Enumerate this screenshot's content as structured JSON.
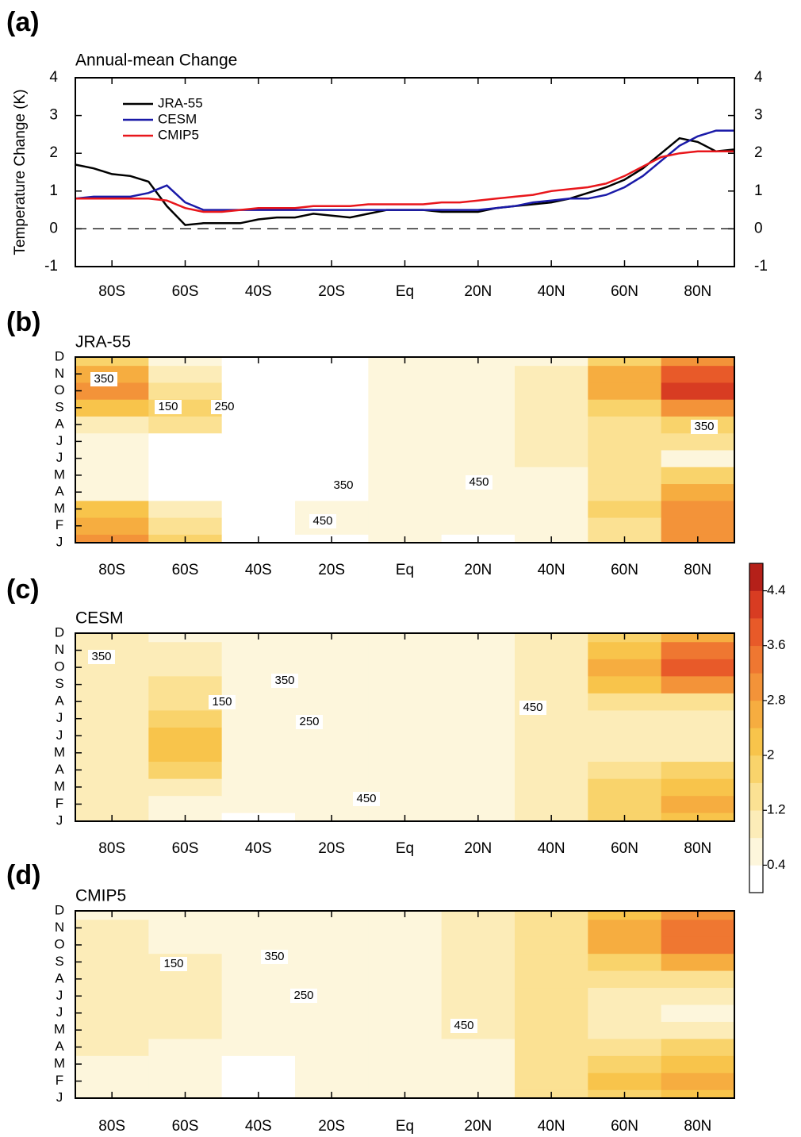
{
  "chart_data": [
    {
      "type": "line",
      "panel_label": "(a)",
      "title": "Annual-mean Change",
      "ylabel": "Temperature Change (K)",
      "x": [
        -90,
        -85,
        -80,
        -75,
        -70,
        -65,
        -60,
        -55,
        -50,
        -45,
        -40,
        -35,
        -30,
        -25,
        -20,
        -15,
        -10,
        -5,
        0,
        5,
        10,
        15,
        20,
        25,
        30,
        35,
        40,
        45,
        50,
        55,
        60,
        65,
        70,
        75,
        80,
        85,
        90
      ],
      "series": [
        {
          "name": "JRA-55",
          "color": "#000000",
          "values": [
            1.7,
            1.6,
            1.45,
            1.4,
            1.25,
            0.6,
            0.1,
            0.15,
            0.15,
            0.15,
            0.25,
            0.3,
            0.3,
            0.4,
            0.35,
            0.3,
            0.4,
            0.5,
            0.5,
            0.5,
            0.45,
            0.45,
            0.45,
            0.55,
            0.6,
            0.65,
            0.7,
            0.8,
            0.95,
            1.1,
            1.3,
            1.6,
            2.0,
            2.4,
            2.3,
            2.05,
            2.1
          ]
        },
        {
          "name": "CESM",
          "color": "#1a1aa8",
          "values": [
            0.8,
            0.85,
            0.85,
            0.85,
            0.95,
            1.15,
            0.7,
            0.5,
            0.5,
            0.5,
            0.5,
            0.5,
            0.5,
            0.5,
            0.5,
            0.5,
            0.5,
            0.5,
            0.5,
            0.5,
            0.5,
            0.5,
            0.5,
            0.55,
            0.6,
            0.7,
            0.75,
            0.8,
            0.8,
            0.9,
            1.1,
            1.4,
            1.8,
            2.2,
            2.45,
            2.6,
            2.6
          ]
        },
        {
          "name": "CMIP5",
          "color": "#e8161b",
          "values": [
            0.8,
            0.8,
            0.8,
            0.8,
            0.8,
            0.75,
            0.55,
            0.45,
            0.45,
            0.5,
            0.55,
            0.55,
            0.55,
            0.6,
            0.6,
            0.6,
            0.65,
            0.65,
            0.65,
            0.65,
            0.7,
            0.7,
            0.75,
            0.8,
            0.85,
            0.9,
            1.0,
            1.05,
            1.1,
            1.2,
            1.4,
            1.65,
            1.9,
            2.0,
            2.05,
            2.05,
            2.05
          ]
        }
      ],
      "xlim": [
        -90,
        90
      ],
      "xticks": [
        {
          "value": -80,
          "label": "80S"
        },
        {
          "value": -60,
          "label": "60S"
        },
        {
          "value": -40,
          "label": "40S"
        },
        {
          "value": -20,
          "label": "20S"
        },
        {
          "value": 0,
          "label": "Eq"
        },
        {
          "value": 20,
          "label": "20N"
        },
        {
          "value": 40,
          "label": "40N"
        },
        {
          "value": 60,
          "label": "60N"
        },
        {
          "value": 80,
          "label": "80N"
        }
      ],
      "ylim": [
        -1,
        4
      ],
      "yticks": [
        -1,
        0,
        1,
        2,
        3,
        4
      ],
      "y2lim": [
        -1,
        4
      ],
      "y2ticks": [
        -1,
        0,
        1,
        2,
        3,
        4
      ],
      "legend": "upper left"
    },
    {
      "type": "heatmap",
      "panel_label": "(b)",
      "title": "JRA-55",
      "x": [
        -80,
        -60,
        -40,
        -20,
        0,
        20,
        40,
        60,
        80
      ],
      "xlim": [
        -90,
        90
      ],
      "xticks": [
        {
          "value": -80,
          "label": "80S"
        },
        {
          "value": -60,
          "label": "60S"
        },
        {
          "value": -40,
          "label": "40S"
        },
        {
          "value": -20,
          "label": "20S"
        },
        {
          "value": 0,
          "label": "Eq"
        },
        {
          "value": 20,
          "label": "20N"
        },
        {
          "value": 40,
          "label": "40N"
        },
        {
          "value": 60,
          "label": "60N"
        },
        {
          "value": 80,
          "label": "80N"
        }
      ],
      "categories": [
        "J",
        "F",
        "M",
        "A",
        "M",
        "J",
        "J",
        "A",
        "S",
        "O",
        "N",
        "D"
      ],
      "values": [
        [
          3.0,
          1.8,
          0.3,
          0.2,
          0.6,
          0.3,
          0.6,
          1.5,
          3.0
        ],
        [
          2.6,
          1.5,
          0.3,
          0.5,
          0.6,
          0.5,
          0.6,
          1.5,
          3.0
        ],
        [
          2.0,
          1.0,
          0.2,
          0.5,
          0.6,
          0.5,
          0.6,
          1.6,
          2.8
        ],
        [
          0.7,
          0.3,
          0.2,
          0.3,
          0.5,
          0.6,
          0.7,
          1.4,
          2.4
        ],
        [
          0.7,
          0.3,
          0.2,
          0.3,
          0.5,
          0.6,
          0.7,
          1.2,
          1.6
        ],
        [
          0.5,
          0.2,
          0.1,
          0.3,
          0.5,
          0.6,
          0.8,
          1.2,
          0.5
        ],
        [
          0.6,
          0.3,
          0.1,
          0.3,
          0.6,
          0.6,
          0.8,
          1.3,
          1.2
        ],
        [
          1.0,
          1.3,
          0.1,
          0.2,
          0.6,
          0.7,
          1.0,
          1.4,
          1.6
        ],
        [
          2.2,
          1.6,
          0.1,
          0.2,
          0.6,
          0.6,
          1.0,
          1.8,
          2.8
        ],
        [
          2.8,
          1.3,
          0.1,
          0.2,
          0.7,
          0.6,
          1.0,
          2.6,
          4.2
        ],
        [
          2.4,
          0.9,
          0.1,
          0.2,
          0.7,
          0.6,
          0.8,
          2.4,
          3.8
        ],
        [
          1.8,
          0.6,
          0.1,
          0.3,
          0.7,
          0.5,
          0.7,
          1.8,
          3.0
        ]
      ],
      "contour_labels": [
        350,
        150,
        250,
        350,
        350,
        450,
        450
      ]
    },
    {
      "type": "heatmap",
      "panel_label": "(c)",
      "title": "CESM",
      "x": [
        -80,
        -60,
        -40,
        -20,
        0,
        20,
        40,
        60,
        80
      ],
      "xlim": [
        -90,
        90
      ],
      "xticks": [
        {
          "value": -80,
          "label": "80S"
        },
        {
          "value": -60,
          "label": "60S"
        },
        {
          "value": -40,
          "label": "40S"
        },
        {
          "value": -20,
          "label": "20S"
        },
        {
          "value": 0,
          "label": "Eq"
        },
        {
          "value": 20,
          "label": "20N"
        },
        {
          "value": 40,
          "label": "40N"
        },
        {
          "value": 60,
          "label": "60N"
        },
        {
          "value": 80,
          "label": "80N"
        }
      ],
      "categories": [
        "J",
        "F",
        "M",
        "A",
        "M",
        "J",
        "J",
        "A",
        "S",
        "O",
        "N",
        "D"
      ],
      "values": [
        [
          0.9,
          0.6,
          0.3,
          0.6,
          0.6,
          0.6,
          0.8,
          1.6,
          2.2
        ],
        [
          1.0,
          0.7,
          0.5,
          0.6,
          0.6,
          0.6,
          0.8,
          1.7,
          2.4
        ],
        [
          0.9,
          1.0,
          0.6,
          0.6,
          0.6,
          0.6,
          0.8,
          1.6,
          2.3
        ],
        [
          0.8,
          1.8,
          0.6,
          0.6,
          0.6,
          0.6,
          0.8,
          1.3,
          1.6
        ],
        [
          0.8,
          2.2,
          0.6,
          0.6,
          0.6,
          0.6,
          0.8,
          1.0,
          0.8
        ],
        [
          1.0,
          2.0,
          0.6,
          0.6,
          0.6,
          0.6,
          1.0,
          0.9,
          0.8
        ],
        [
          1.1,
          1.6,
          0.6,
          0.6,
          0.6,
          0.6,
          1.1,
          1.0,
          1.0
        ],
        [
          1.0,
          1.4,
          0.6,
          0.6,
          0.6,
          0.5,
          1.1,
          1.3,
          1.4
        ],
        [
          0.9,
          1.3,
          0.6,
          0.6,
          0.6,
          0.6,
          1.0,
          2.0,
          2.8
        ],
        [
          1.0,
          1.0,
          0.6,
          0.6,
          0.6,
          0.6,
          0.9,
          2.6,
          3.8
        ],
        [
          0.9,
          0.8,
          0.6,
          0.6,
          0.6,
          0.6,
          0.8,
          2.3,
          3.4
        ],
        [
          0.8,
          0.7,
          0.6,
          0.6,
          0.6,
          0.6,
          0.8,
          1.7,
          2.6
        ]
      ],
      "contour_labels": [
        350,
        350,
        150,
        250,
        450,
        450
      ],
      "colorbar": {
        "levels": [
          0.4,
          0.8,
          1.2,
          1.6,
          2,
          2.4,
          2.8,
          3.2,
          3.6,
          4,
          4.4
        ],
        "colors": [
          "#ffffff",
          "#fdf6dc",
          "#fcecb8",
          "#fbe193",
          "#f9d36b",
          "#f8c44b",
          "#f6ad40",
          "#f39339",
          "#ef7731",
          "#e85a29",
          "#d83c22",
          "#b52019"
        ],
        "ticks": [
          0.4,
          1.2,
          2,
          2.8,
          3.6,
          4.4
        ]
      }
    },
    {
      "type": "heatmap",
      "panel_label": "(d)",
      "title": "CMIP5",
      "x": [
        -80,
        -60,
        -40,
        -20,
        0,
        20,
        40,
        60,
        80
      ],
      "xlim": [
        -90,
        90
      ],
      "xticks": [
        {
          "value": -80,
          "label": "80S"
        },
        {
          "value": -60,
          "label": "60S"
        },
        {
          "value": -40,
          "label": "40S"
        },
        {
          "value": -20,
          "label": "20S"
        },
        {
          "value": 0,
          "label": "Eq"
        },
        {
          "value": 20,
          "label": "20N"
        },
        {
          "value": 40,
          "label": "40N"
        },
        {
          "value": 60,
          "label": "60N"
        },
        {
          "value": 80,
          "label": "80N"
        }
      ],
      "categories": [
        "J",
        "F",
        "M",
        "A",
        "M",
        "J",
        "J",
        "A",
        "S",
        "O",
        "N",
        "D"
      ],
      "values": [
        [
          0.7,
          0.4,
          0.3,
          0.6,
          0.6,
          0.7,
          1.3,
          1.9,
          2.2
        ],
        [
          0.7,
          0.4,
          0.3,
          0.6,
          0.6,
          0.7,
          1.3,
          2.0,
          2.4
        ],
        [
          0.7,
          0.5,
          0.3,
          0.6,
          0.6,
          0.7,
          1.3,
          1.7,
          2.2
        ],
        [
          0.8,
          0.4,
          0.6,
          0.6,
          0.6,
          0.7,
          1.3,
          1.4,
          1.6
        ],
        [
          0.8,
          0.9,
          0.6,
          0.6,
          0.6,
          0.8,
          1.2,
          1.0,
          1.0
        ],
        [
          0.9,
          1.0,
          0.6,
          0.6,
          0.6,
          0.8,
          1.2,
          0.9,
          0.6
        ],
        [
          1.0,
          1.0,
          0.6,
          0.6,
          0.6,
          0.9,
          1.2,
          1.0,
          0.8
        ],
        [
          1.0,
          1.0,
          0.6,
          0.6,
          0.6,
          0.9,
          1.3,
          1.2,
          1.2
        ],
        [
          0.9,
          0.8,
          0.6,
          0.6,
          0.6,
          1.0,
          1.4,
          1.8,
          2.4
        ],
        [
          0.8,
          0.6,
          0.6,
          0.6,
          0.6,
          1.1,
          1.5,
          2.4,
          3.2
        ],
        [
          0.9,
          0.6,
          0.6,
          0.6,
          0.6,
          1.1,
          1.5,
          2.4,
          3.4
        ],
        [
          0.7,
          0.5,
          0.6,
          0.6,
          0.6,
          0.8,
          1.3,
          2.0,
          2.8
        ]
      ],
      "contour_labels": [
        150,
        350,
        250,
        450
      ]
    }
  ]
}
